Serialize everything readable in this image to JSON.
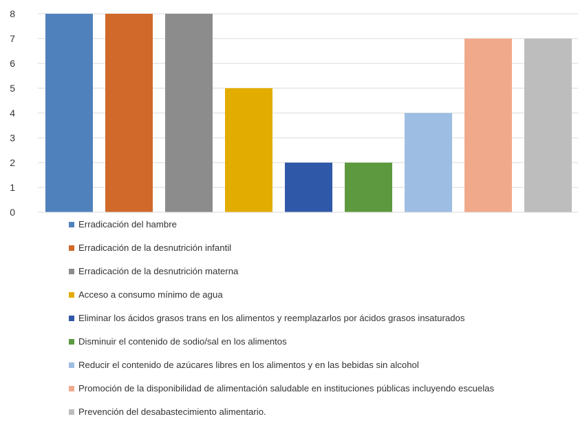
{
  "chart_data": {
    "type": "bar",
    "categories": [
      "Erradicación del hambre",
      "Erradicación de la desnutrición infantil",
      "Erradicación de la desnutrición materna",
      "Acceso a consumo mínimo de agua",
      "Eliminar los ácidos grasos trans en los alimentos y reemplazarlos por ácidos grasos insaturados",
      "Disminuir el contenido de sodio/sal en los alimentos",
      "Reducir el contenido de azúcares libres en los alimentos y en las bebidas sin alcohol",
      "Promoción de la disponibilidad de alimentación saludable en instituciones públicas incluyendo escuelas",
      "Prevención del desabastecimiento alimentario."
    ],
    "values": [
      8,
      8,
      8,
      5,
      2,
      2,
      4,
      7,
      7
    ],
    "colors": [
      "#4f81bd",
      "#d0692a",
      "#8c8c8c",
      "#e3ac00",
      "#3058a8",
      "#5d9a3f",
      "#9dbde3",
      "#f1a98c",
      "#bdbdbd"
    ],
    "yticks": [
      "0",
      "1",
      "2",
      "3",
      "4",
      "5",
      "6",
      "7",
      "8"
    ],
    "ylim": [
      0,
      8
    ],
    "grid": true,
    "legend_position": "bottom"
  }
}
